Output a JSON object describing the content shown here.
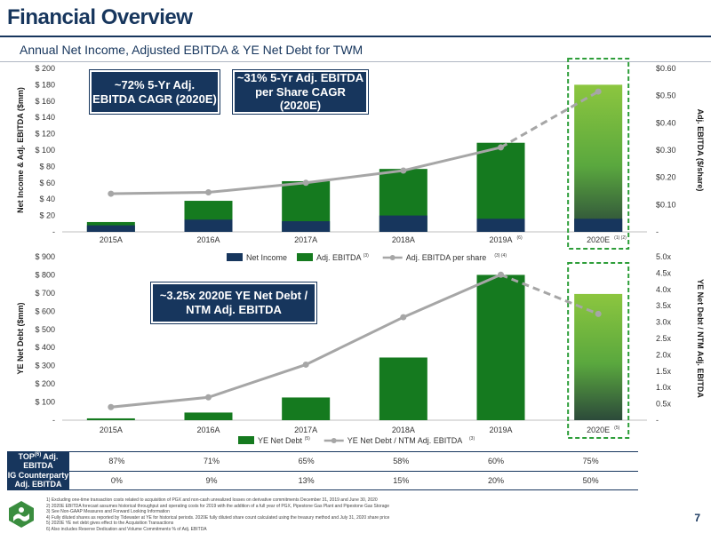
{
  "header": {
    "title": "Financial Overview",
    "subtitle": "Annual Net Income, Adjusted EBITDA & YE Net Debt for TWM"
  },
  "colors": {
    "navy": "#17365d",
    "green": "#157a1f",
    "light_green": "#8cc63f",
    "line_gray": "#a6a6a6",
    "dash_green": "#2e9e3a"
  },
  "callouts": {
    "ebitda_cagr": "~72% 5-Yr Adj. EBITDA CAGR (2020E)",
    "per_share_cagr": "~31% 5-Yr Adj. EBITDA per Share CAGR (2020E)",
    "leverage": "~3.25x 2020E YE Net Debt / NTM Adj. EBITDA"
  },
  "chart_data": [
    {
      "type": "bar",
      "categories": [
        "2015A",
        "2016A",
        "2017A",
        "2018A",
        "2019A",
        "2020E"
      ],
      "category_superscripts": [
        "",
        "",
        "",
        "",
        "(6)",
        "(1) (2)"
      ],
      "series": [
        {
          "name": "Net Income",
          "values": [
            8,
            15,
            13,
            20,
            16,
            16
          ]
        },
        {
          "name": "Adj. EBITDA",
          "name_superscript": "(3)",
          "values": [
            12,
            38,
            62,
            77,
            109,
            180
          ]
        },
        {
          "name": "Adj. EBITDA per share",
          "name_superscript": "(3) (4)",
          "axis": "right",
          "values": [
            0.14,
            0.145,
            0.18,
            0.225,
            0.31,
            0.515
          ]
        }
      ],
      "ylabel": "Net Income & Adj. EBITDA ($mm)",
      "y2label": "Adj. EBITDA ($/share)",
      "ylim": [
        0,
        200
      ],
      "y2lim": [
        0,
        0.6
      ],
      "yticks": [
        "-",
        "$ 20",
        "$ 40",
        "$ 60",
        "$ 80",
        "$ 100",
        "$ 120",
        "$ 140",
        "$ 160",
        "$ 180",
        "$ 200"
      ],
      "y2ticks": [
        "-",
        "$0.10",
        "$0.20",
        "$0.30",
        "$0.40",
        "$0.50",
        "$0.60"
      ],
      "legend_position": "bottom",
      "projected_category": "2020E"
    },
    {
      "type": "bar",
      "categories": [
        "2015A",
        "2016A",
        "2017A",
        "2018A",
        "2019A",
        "2020E"
      ],
      "category_superscripts": [
        "",
        "",
        "",
        "",
        "",
        "(5)"
      ],
      "series": [
        {
          "name": "YE Net Debt",
          "name_superscript": "(5)",
          "values": [
            10,
            42,
            125,
            345,
            800,
            695
          ]
        },
        {
          "name": "YE Net Debt / NTM Adj. EBITDA",
          "name_superscript": "(3)",
          "axis": "right",
          "values": [
            0.4,
            0.7,
            1.7,
            3.15,
            4.45,
            3.25
          ]
        }
      ],
      "ylabel": "YE Net Debt ($mm)",
      "y2label": "YE Net Debt / NTM Adj. EBITDA",
      "ylim": [
        0,
        900
      ],
      "y2lim": [
        0,
        5
      ],
      "yticks": [
        "-",
        "$ 100",
        "$ 200",
        "$ 300",
        "$ 400",
        "$ 500",
        "$ 600",
        "$ 700",
        "$ 800",
        "$ 900"
      ],
      "y2ticks": [
        "-",
        "0.5x",
        "1.0x",
        "1.5x",
        "2.0x",
        "2.5x",
        "3.0x",
        "3.5x",
        "4.0x",
        "4.5x",
        "5.0x"
      ],
      "legend_position": "bottom",
      "projected_category": "2020E"
    }
  ],
  "metrics_table": {
    "rows": [
      {
        "label": "TOP",
        "label_sup": "(6)",
        "label_rest": " Adj. EBITDA",
        "values": [
          "87%",
          "71%",
          "65%",
          "58%",
          "60%",
          "75%"
        ]
      },
      {
        "label": "IG Counterparty",
        "label_sup": "",
        "label_rest": "Adj. EBITDA",
        "values": [
          "0%",
          "9%",
          "13%",
          "15%",
          "20%",
          "50%"
        ]
      }
    ]
  },
  "footnotes": [
    "1)  Excluding one-time transaction costs related to acquisition of PGX and non-cash unrealized losses on derivative commitments December 31, 2019 and June 30, 2020",
    "2)  2020E EBITDA forecast assumes historical throughput and operating costs for 2019 with the addition of a full year of PGX, Pipestone Gas Plant and Pipestone Gas Storage",
    "3)  See Non-GAAP Measures and Forward Looking Information",
    "4)  Fully diluted shares as reported by Tidewater at YE for historical periods. 2020E fully diluted share count calculated using the treasury method and July 31, 2020 share price",
    "5)  2020E YE net debt gives effect to the Acquisition Transactions",
    "6)  Also includes Reserve Dedication and Volume Commitments % of Adj. EBITDA"
  ],
  "page_number": "7"
}
